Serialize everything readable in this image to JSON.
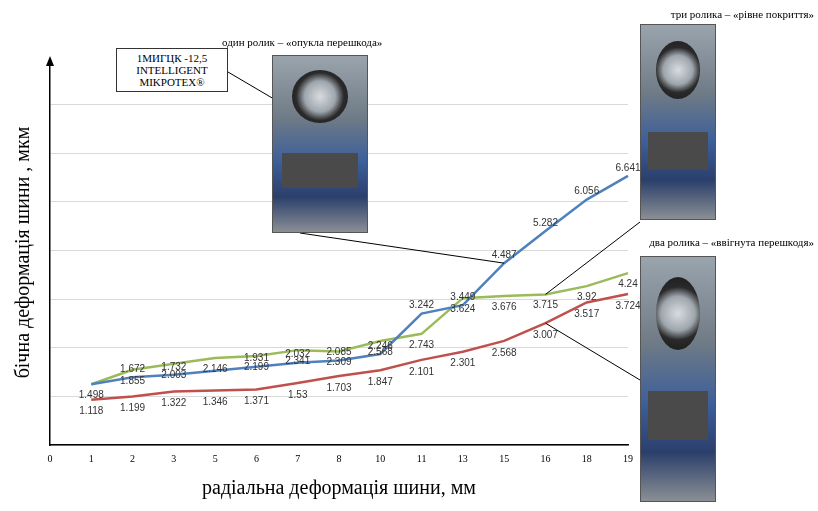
{
  "chart_data": {
    "type": "line",
    "x_label": "радіальна деформація шини, мм",
    "y_label": "бічна деформація шини , мкм",
    "annotations": [
      "1МИГЦК -12,5 INTELLIGENT MIKPOTEX®"
    ],
    "categories": [
      "0",
      "1",
      "2",
      "3",
      "5",
      "6",
      "7",
      "8",
      "10",
      "11",
      "13",
      "15",
      "16",
      "18",
      "19"
    ],
    "series": [
      {
        "name": "один ролик – «опукла перешкода»",
        "color": "#4f81bd",
        "marker": "none",
        "line_style": "solid",
        "values": [
          null,
          1.498,
          1.672,
          1.732,
          1.83,
          1.931,
          2.032,
          2.085,
          2.246,
          3.242,
          3.449,
          4.487,
          5.282,
          6.056,
          6.641
        ],
        "value_labels": [
          null,
          null,
          "1.672",
          "1.732",
          null,
          "1.931",
          "2.032",
          "2.085",
          "2.246",
          "3.242",
          "3.449",
          "4.487",
          "5.282",
          "6.056",
          "6.641"
        ]
      },
      {
        "name": "три ролика – «рівне покриття»",
        "color": "#9bbb59",
        "marker": "none",
        "line_style": "solid",
        "values": [
          null,
          1.498,
          1.855,
          2.003,
          2.146,
          2.199,
          2.341,
          2.309,
          2.568,
          2.743,
          3.624,
          3.676,
          3.715,
          3.92,
          4.24
        ]
      },
      {
        "name": "два ролика – «ввігнута перешкодя»",
        "color": "#c0504d",
        "marker": "none",
        "line_style": "solid",
        "values": [
          null,
          1.118,
          1.199,
          1.322,
          1.346,
          1.371,
          1.53,
          1.703,
          1.847,
          2.101,
          2.301,
          2.568,
          3.007,
          3.517,
          3.724
        ]
      }
    ],
    "ylim": [
      0,
      9.5
    ],
    "yticks": [
      0,
      1.2,
      2.4,
      3.6,
      4.8,
      6,
      7.2,
      8.4
    ],
    "grid": true,
    "data_labels": true,
    "tick_labels": "x"
  }
}
